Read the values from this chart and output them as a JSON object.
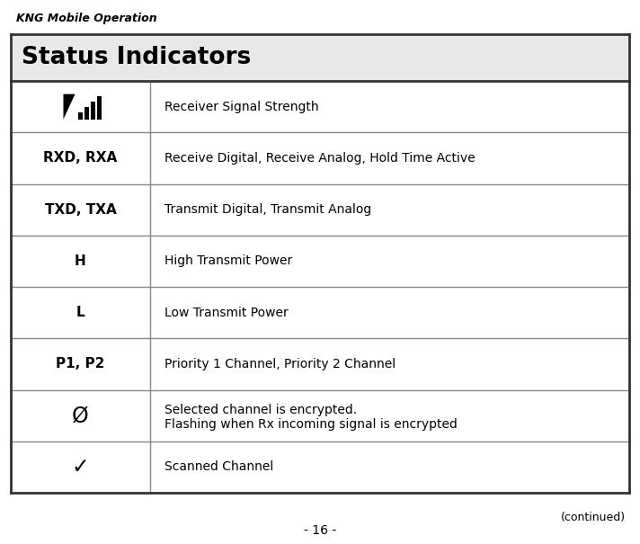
{
  "title": "Status Indicators",
  "header_bg": "#e8e8e8",
  "header_text_color": "#000000",
  "header_fontsize": 19,
  "table_border_color": "#333333",
  "row_line_color": "#888888",
  "top_label": "KNG Mobile Operation",
  "bottom_center_label": "- 16 -",
  "bottom_right_label": "(continued)",
  "rows": [
    {
      "symbol": "signal_icon",
      "symbol_type": "signal",
      "description": "Receiver Signal Strength"
    },
    {
      "symbol": "RXD, RXA",
      "symbol_type": "text_bold",
      "description": "Receive Digital, Receive Analog, Hold Time Active"
    },
    {
      "symbol": "TXD, TXA",
      "symbol_type": "text_bold",
      "description": "Transmit Digital, Transmit Analog"
    },
    {
      "symbol": "H",
      "symbol_type": "text_bold",
      "description": "High Transmit Power"
    },
    {
      "symbol": "L",
      "symbol_type": "text_bold",
      "description": "Low Transmit Power"
    },
    {
      "symbol": "P1, P2",
      "symbol_type": "text_bold",
      "description": "Priority 1 Channel, Priority 2 Channel"
    },
    {
      "symbol": "Ø",
      "symbol_type": "text_normal_large",
      "description": "Selected channel is encrypted.\nFlashing when Rx incoming signal is encrypted"
    },
    {
      "symbol": "✓",
      "symbol_type": "text_normal_large",
      "description": "Scanned Channel"
    }
  ]
}
